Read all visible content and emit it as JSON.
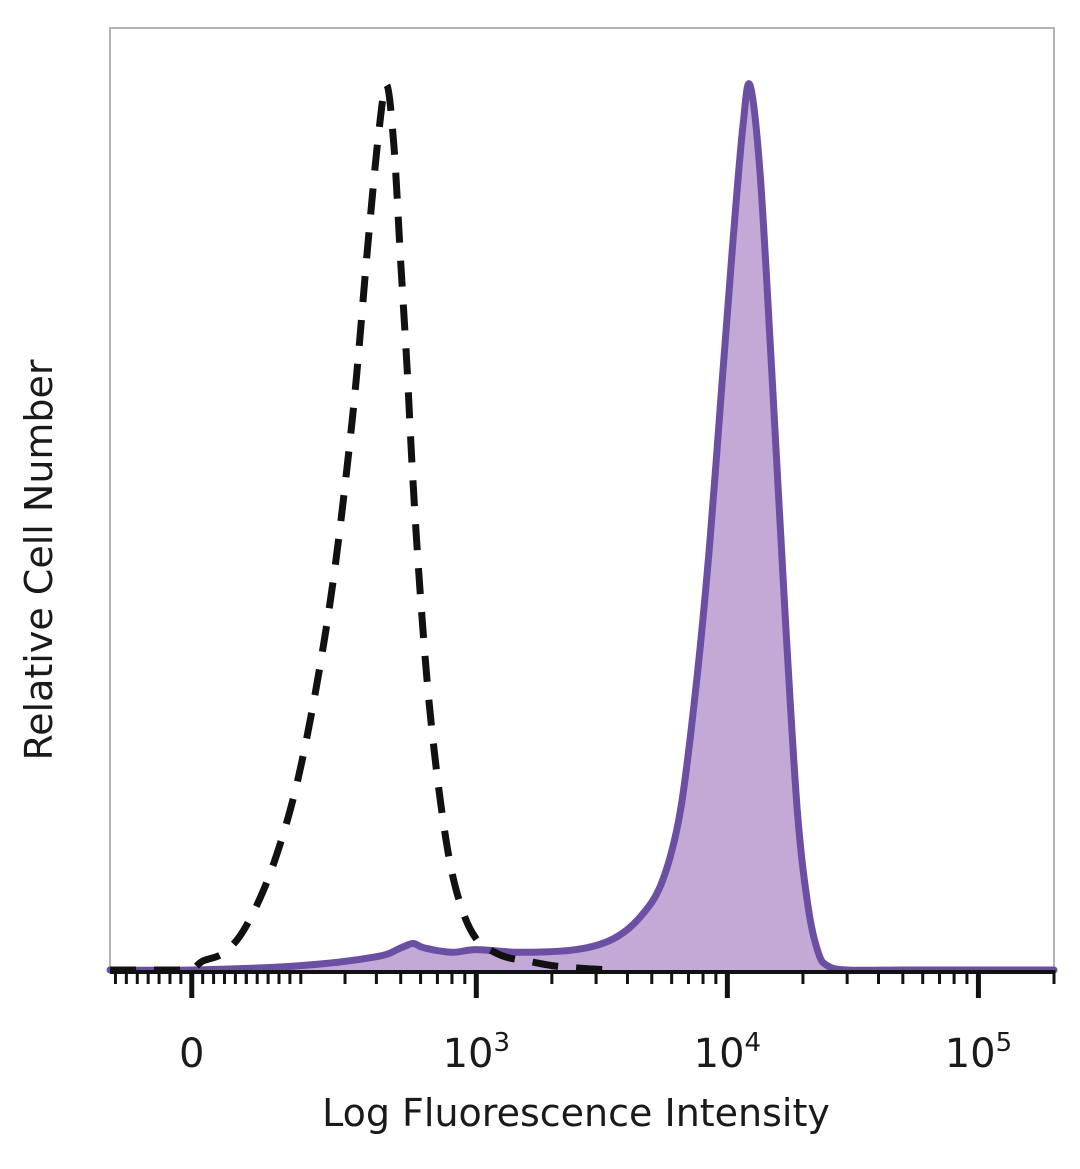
{
  "chart_data": {
    "type": "area",
    "xlabel": "Log Fluorescence Intensity",
    "ylabel": "Relative Cell Number",
    "x_scale": "biexponential",
    "x_range": [
      -150,
      200000
    ],
    "y_range": [
      0,
      100
    ],
    "grid": false,
    "legend": "none",
    "x_ticks": [
      {
        "value": 0,
        "base": "0",
        "exp": ""
      },
      {
        "value": 1000,
        "base": "10",
        "exp": "3"
      },
      {
        "value": 10000,
        "base": "10",
        "exp": "4"
      },
      {
        "value": 100000,
        "base": "10",
        "exp": "5"
      }
    ],
    "series": [
      {
        "style": "dashed",
        "color": "#111111",
        "x": [
          -150,
          -80,
          -20,
          0,
          20,
          60,
          100,
          150,
          200,
          260,
          320,
          370,
          410,
          440,
          470,
          500,
          530,
          560,
          600,
          650,
          720,
          800,
          900,
          1000,
          1100,
          1300,
          1600,
          2000,
          2600,
          3500
        ],
        "y": [
          0,
          0,
          0,
          0,
          1,
          2,
          5,
          12,
          23,
          41,
          62,
          82,
          95,
          100,
          93,
          80,
          68,
          55,
          42,
          30,
          19,
          11,
          6,
          3.5,
          2.5,
          1.5,
          1,
          0.5,
          0.2,
          0
        ]
      },
      {
        "style": "filled",
        "color": "#6b4fa3",
        "fill": "#c2a9d6",
        "x": [
          -150,
          0,
          200,
          400,
          500,
          560,
          620,
          800,
          1000,
          1500,
          2500,
          3500,
          4500,
          5500,
          6500,
          7500,
          8500,
          9500,
          10500,
          11500,
          12300,
          13500,
          15000,
          17000,
          19000,
          21000,
          23000,
          25000,
          30000,
          50000,
          100000,
          200000
        ],
        "y": [
          0,
          0,
          0.5,
          1.5,
          2.5,
          3,
          2.5,
          2,
          2.3,
          2,
          2.3,
          3.5,
          6,
          10,
          18,
          32,
          48,
          66,
          82,
          95,
          100,
          90,
          68,
          40,
          18,
          7,
          2,
          0.5,
          0,
          0,
          0,
          0
        ]
      }
    ]
  }
}
